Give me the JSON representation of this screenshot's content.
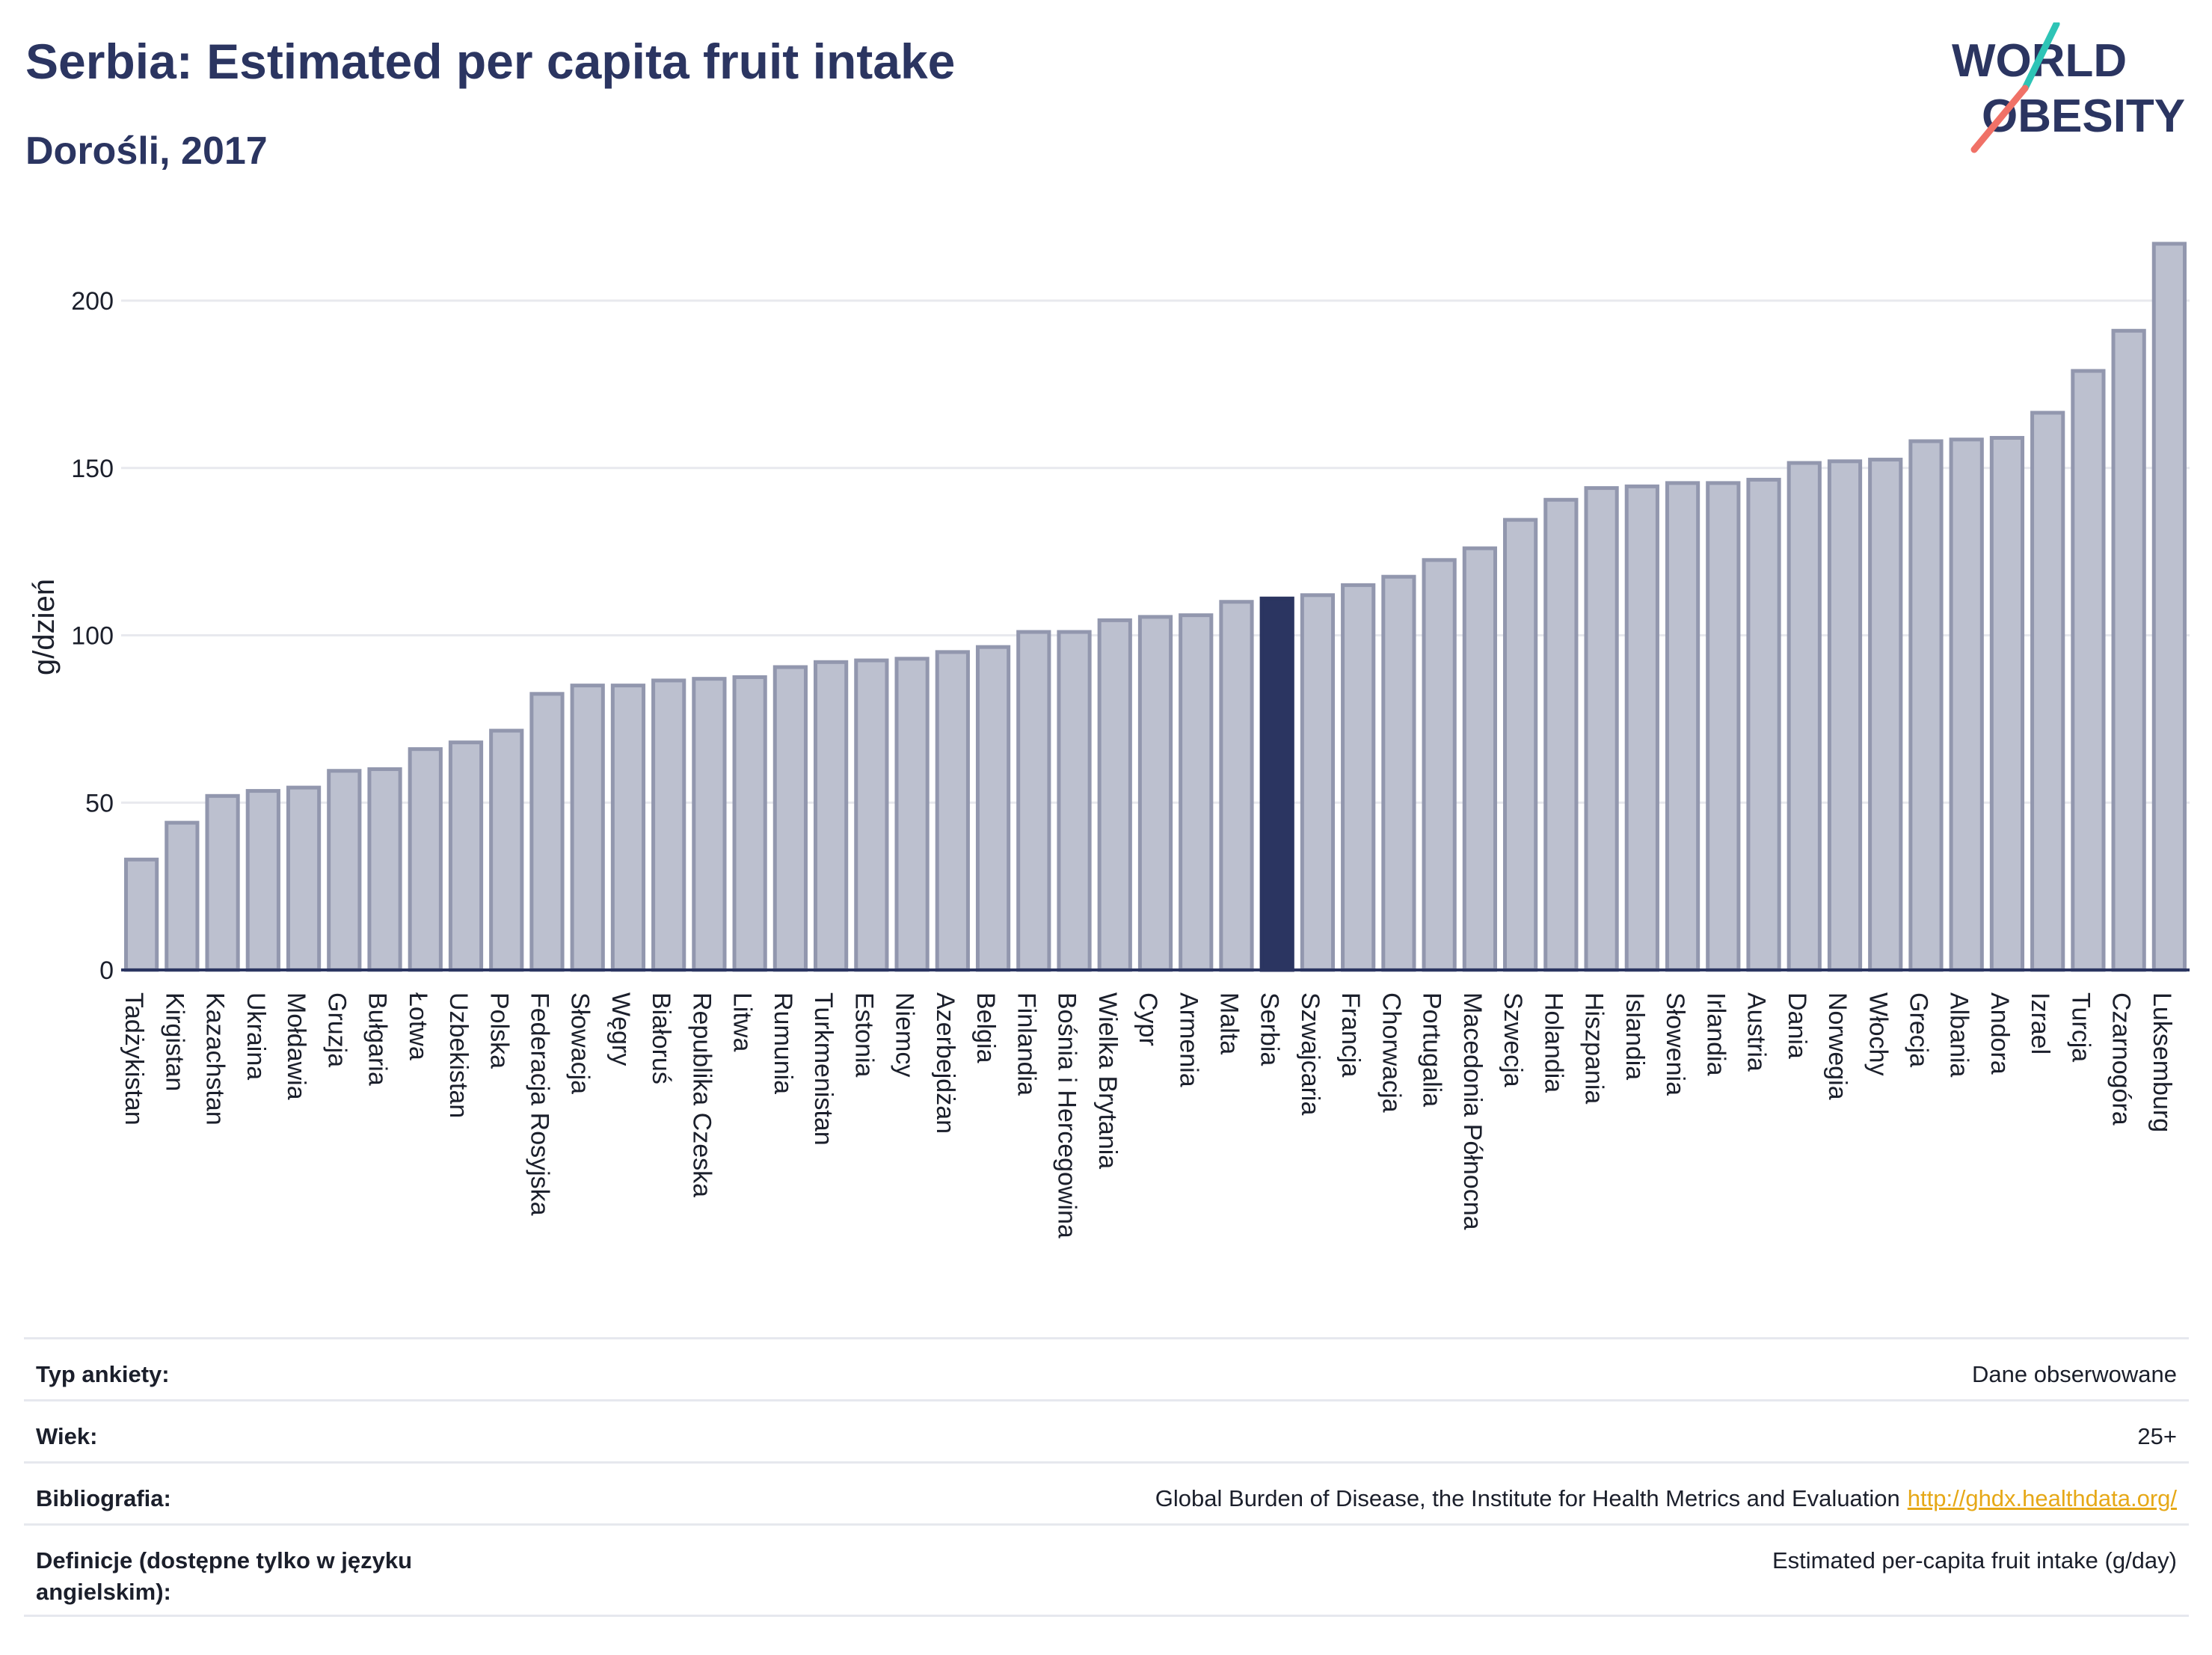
{
  "header": {
    "title": "Serbia: Estimated per capita fruit intake",
    "subtitle": "Dorośli, 2017"
  },
  "logo": {
    "line1": "WORLD",
    "line2": "OBESITY",
    "accent_teal": "#2ec4b6",
    "accent_coral": "#f07167",
    "text_color": "#2b3561"
  },
  "colors": {
    "bar_fill": "#bcc0cf",
    "bar_stroke": "#9297ae",
    "highlight": "#2b3561",
    "grid": "#e8e9ee",
    "axis": "#2b3561"
  },
  "chart_data": {
    "type": "bar",
    "ylabel": "g/dzień",
    "ylim": [
      0,
      225
    ],
    "yticks": [
      0,
      50,
      100,
      150,
      200
    ],
    "grid": true,
    "highlight_category": "Serbia",
    "categories": [
      "Tadżykistan",
      "Kirgistan",
      "Kazachstan",
      "Ukraina",
      "Mołdawia",
      "Gruzja",
      "Bułgaria",
      "Łotwa",
      "Uzbekistan",
      "Polska",
      "Federacja Rosyjska",
      "Słowacja",
      "Węgry",
      "Białoruś",
      "Republika Czeska",
      "Litwa",
      "Rumunia",
      "Turkmenistan",
      "Estonia",
      "Niemcy",
      "Azerbejdżan",
      "Belgia",
      "Finlandia",
      "Bośnia i Hercegowina",
      "Wielka Brytania",
      "Cypr",
      "Armenia",
      "Malta",
      "Serbia",
      "Szwajcaria",
      "Francja",
      "Chorwacja",
      "Portugalia",
      "Macedonia Północna",
      "Szwecja",
      "Holandia",
      "Hiszpania",
      "Islandia",
      "Słowenia",
      "Irlandia",
      "Austria",
      "Dania",
      "Norwegia",
      "Włochy",
      "Grecja",
      "Albania",
      "Andora",
      "Izrael",
      "Turcja",
      "Czarnogóra",
      "Luksemburg"
    ],
    "values": [
      33,
      44,
      52,
      53.5,
      54.5,
      59.5,
      60,
      66,
      68,
      71.5,
      82.5,
      85,
      85,
      86.5,
      87,
      87.5,
      90.5,
      92,
      92.5,
      93,
      95,
      96.5,
      101,
      101,
      104.5,
      105.5,
      106,
      110,
      111,
      112,
      115,
      117.5,
      122.5,
      126,
      134.5,
      140.5,
      144,
      144.5,
      145.5,
      145.5,
      146.5,
      151.5,
      152,
      152.5,
      158,
      158.5,
      159,
      166.5,
      179,
      191,
      217
    ]
  },
  "info": {
    "rows": [
      {
        "label": "Typ ankiety:",
        "value": "Dane obserwowane"
      },
      {
        "label": "Wiek:",
        "value": "25+"
      },
      {
        "label": "Bibliografia:",
        "value": "Global Burden of Disease, the Institute for Health Metrics and Evaluation",
        "link": "http://ghdx.healthdata.org/"
      },
      {
        "label": "Definicje (dostępne tylko w języku angielskim):",
        "value": "Estimated per-capita fruit intake (g/day)"
      }
    ]
  }
}
